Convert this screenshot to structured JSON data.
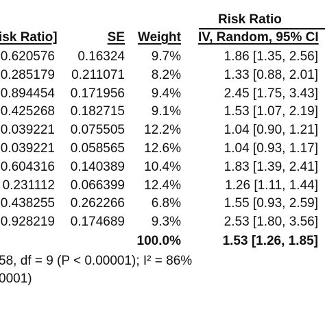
{
  "header": {
    "group_title": "Risk Ratio",
    "col_log_rr": "isk Ratio]",
    "col_se": "SE",
    "col_weight": "Weight",
    "col_rr": "IV, Random, 95% CI"
  },
  "rows": [
    {
      "log_rr": "0.620576",
      "se": "0.16324",
      "weight": "9.7%",
      "rr": "1.86 [1.35, 2.56]"
    },
    {
      "log_rr": "0.285179",
      "se": "0.211071",
      "weight": "8.2%",
      "rr": "1.33 [0.88, 2.01]"
    },
    {
      "log_rr": "0.894454",
      "se": "0.171956",
      "weight": "9.4%",
      "rr": "2.45 [1.75, 3.43]"
    },
    {
      "log_rr": "0.425268",
      "se": "0.182715",
      "weight": "9.1%",
      "rr": "1.53 [1.07, 2.19]"
    },
    {
      "log_rr": "0.039221",
      "se": "0.075505",
      "weight": "12.2%",
      "rr": "1.04 [0.90, 1.21]"
    },
    {
      "log_rr": "0.039221",
      "se": "0.058565",
      "weight": "12.6%",
      "rr": "1.04 [0.93, 1.17]"
    },
    {
      "log_rr": "0.604316",
      "se": "0.140389",
      "weight": "10.4%",
      "rr": "1.83 [1.39, 2.41]"
    },
    {
      "log_rr": "0.231112",
      "se": "0.066399",
      "weight": "12.4%",
      "rr": "1.26 [1.11, 1.44]"
    },
    {
      "log_rr": "0.438255",
      "se": "0.262266",
      "weight": "6.8%",
      "rr": "1.55 [0.93, 2.59]"
    },
    {
      "log_rr": "0.928219",
      "se": "0.174689",
      "weight": "9.3%",
      "rr": "2.53 [1.80, 3.56]"
    }
  ],
  "total": {
    "weight": "100.0%",
    "rr": "1.53 [1.26, 1.85]"
  },
  "footer": {
    "heterogeneity": "58, df = 9 (P < 0.00001); I² = 86%",
    "overall": "0001)"
  }
}
